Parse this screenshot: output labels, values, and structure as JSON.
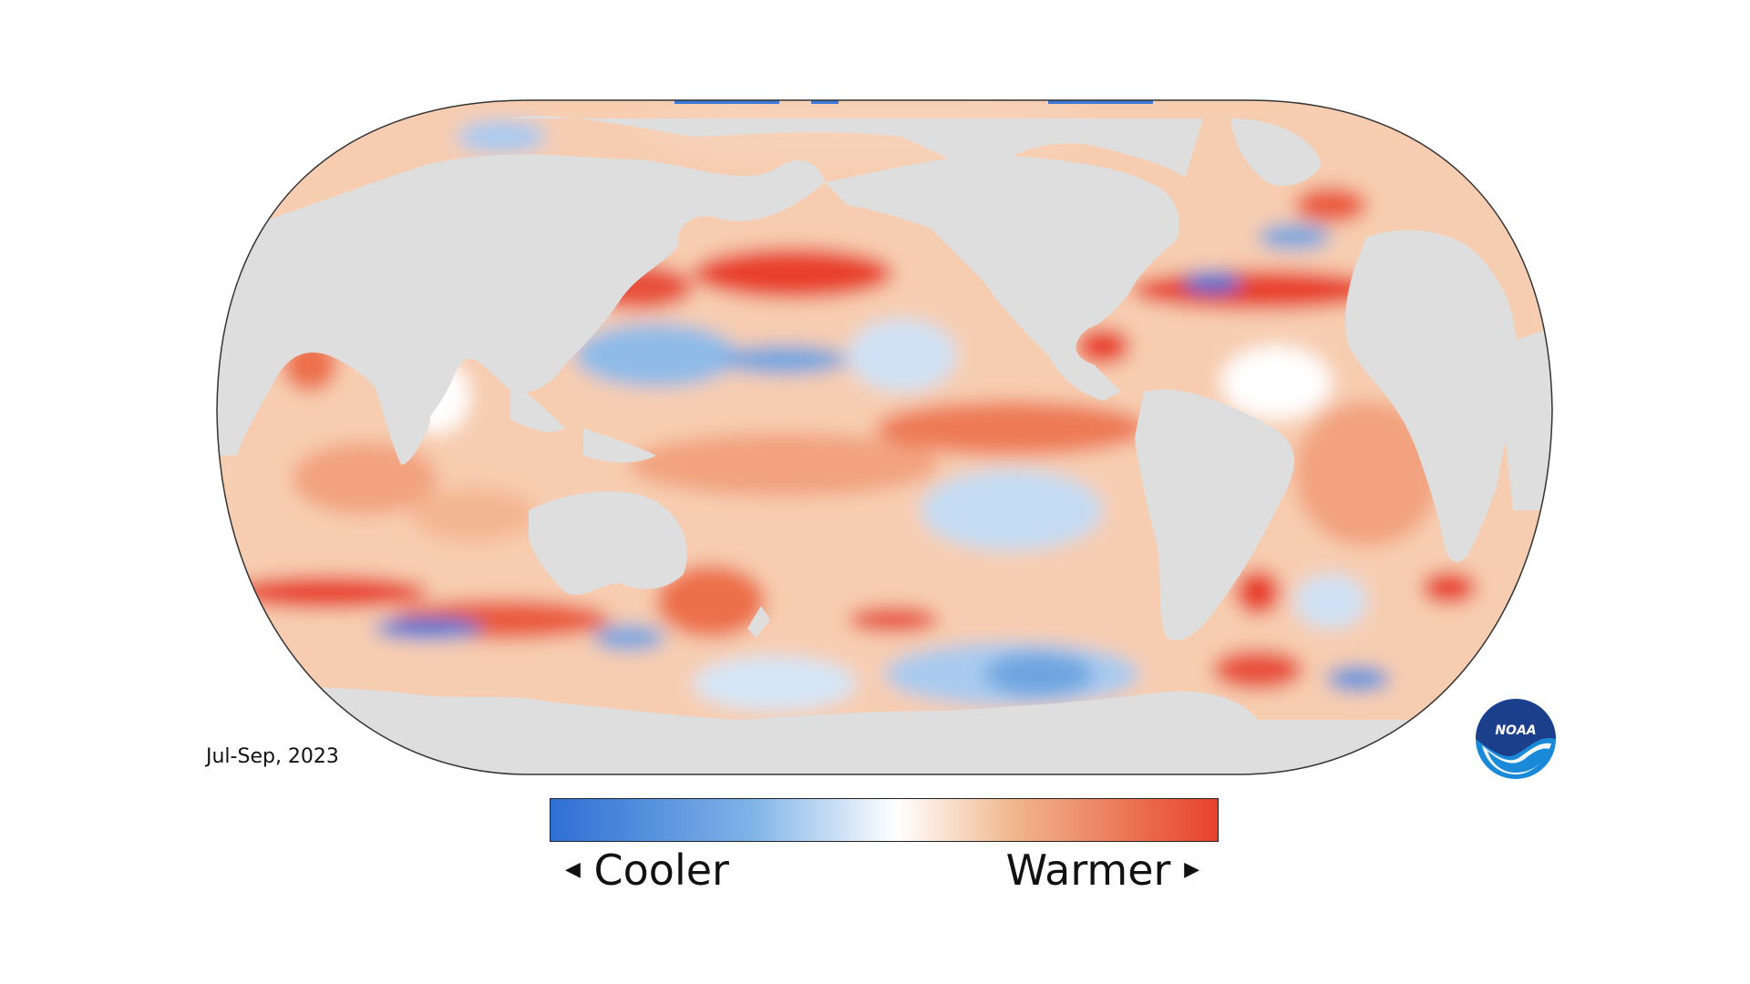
{
  "period": "Jul-Sep, 2023",
  "legend": {
    "cooler_label": "Cooler",
    "warmer_label": "Warmer",
    "cooler_arrow": "◀",
    "warmer_arrow": "▶",
    "colors": [
      "#2e6fd4",
      "#7fb3e8",
      "#ffffff",
      "#f0b48a",
      "#e8412c"
    ]
  },
  "logo": {
    "text": "NOAA",
    "colors": {
      "top": "#1b3f8b",
      "bottom": "#1a8ad8"
    }
  },
  "map": {
    "ocean_base": "#f4c0a0",
    "land_color": "#dedede"
  }
}
